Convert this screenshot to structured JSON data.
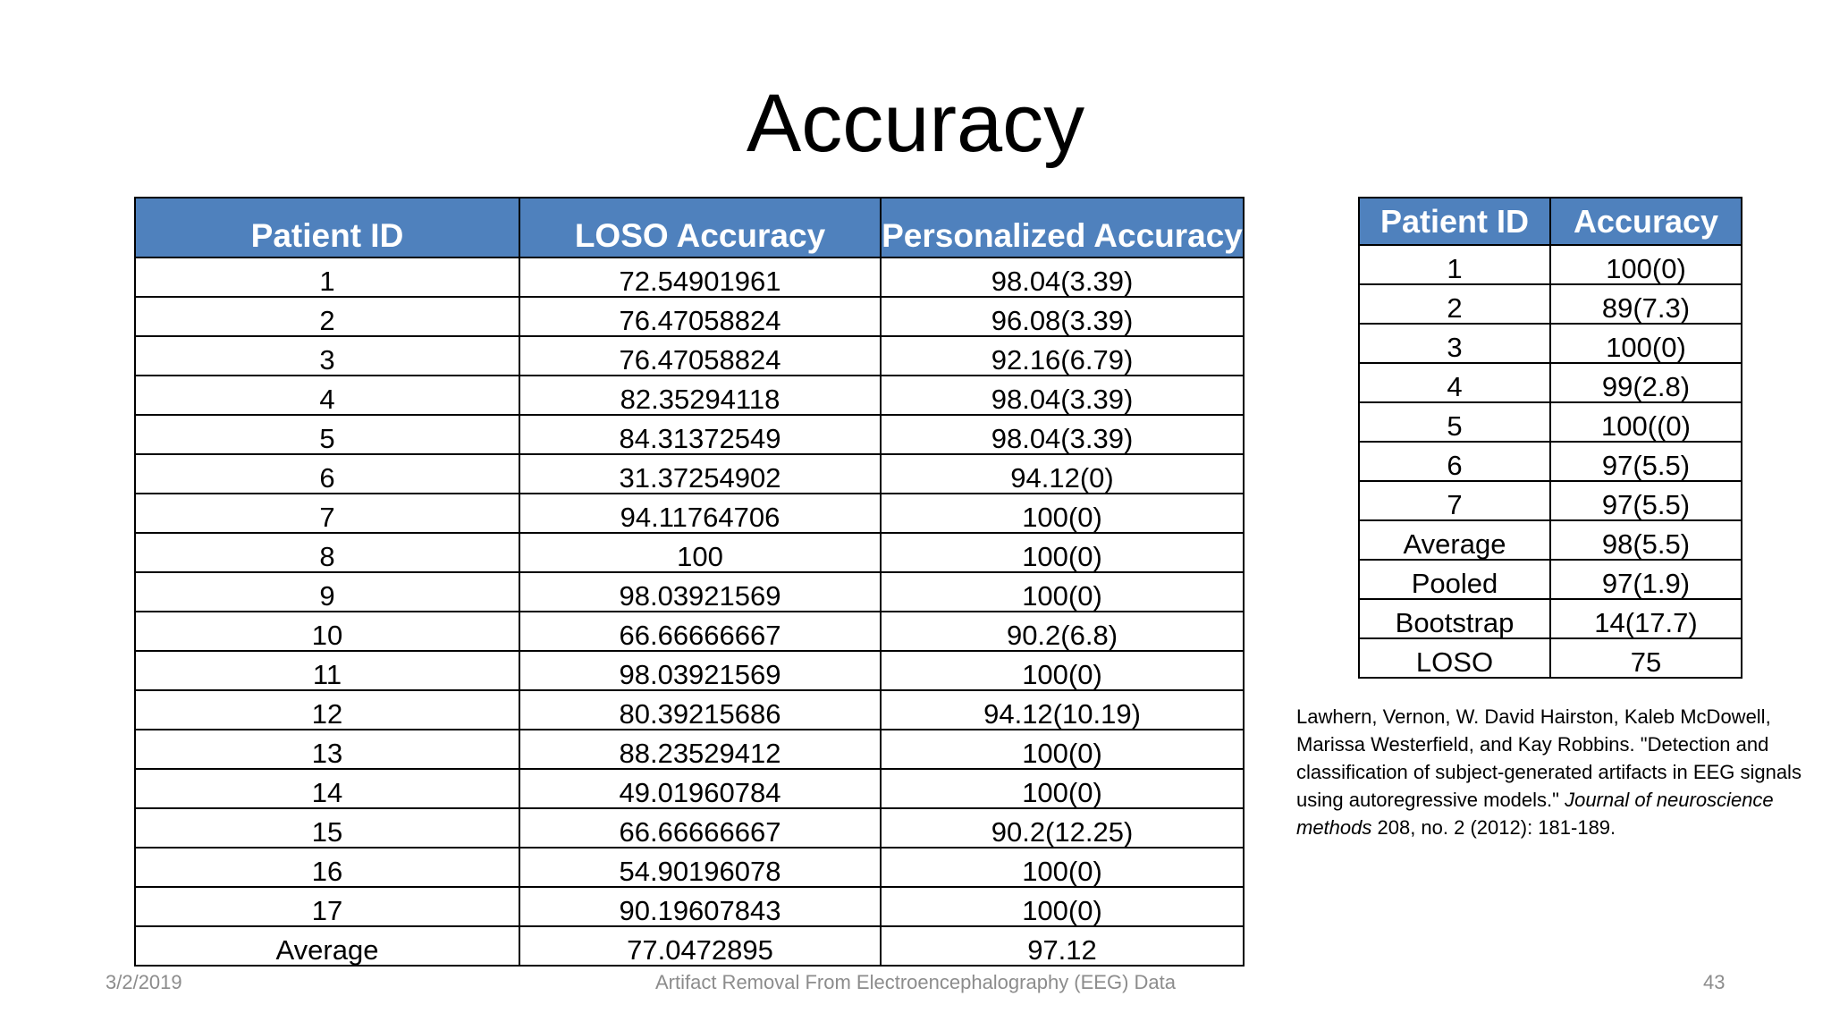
{
  "title": "Accuracy",
  "main_table": {
    "headers": [
      "Patient ID",
      "LOSO Accuracy",
      "Personalized Accuracy"
    ],
    "rows": [
      [
        "1",
        "72.54901961",
        "98.04(3.39)"
      ],
      [
        "2",
        "76.47058824",
        "96.08(3.39)"
      ],
      [
        "3",
        "76.47058824",
        "92.16(6.79)"
      ],
      [
        "4",
        "82.35294118",
        "98.04(3.39)"
      ],
      [
        "5",
        "84.31372549",
        "98.04(3.39)"
      ],
      [
        "6",
        "31.37254902",
        "94.12(0)"
      ],
      [
        "7",
        "94.11764706",
        "100(0)"
      ],
      [
        "8",
        "100",
        "100(0)"
      ],
      [
        "9",
        "98.03921569",
        "100(0)"
      ],
      [
        "10",
        "66.66666667",
        "90.2(6.8)"
      ],
      [
        "11",
        "98.03921569",
        "100(0)"
      ],
      [
        "12",
        "80.39215686",
        "94.12(10.19)"
      ],
      [
        "13",
        "88.23529412",
        "100(0)"
      ],
      [
        "14",
        "49.01960784",
        "100(0)"
      ],
      [
        "15",
        "66.66666667",
        "90.2(12.25)"
      ],
      [
        "16",
        "54.90196078",
        "100(0)"
      ],
      [
        "17",
        "90.19607843",
        "100(0)"
      ],
      [
        "Average",
        "77.0472895",
        "97.12"
      ]
    ]
  },
  "side_table": {
    "headers": [
      "Patient ID",
      "Accuracy"
    ],
    "rows": [
      [
        "1",
        "100(0)"
      ],
      [
        "2",
        "89(7.3)"
      ],
      [
        "3",
        "100(0)"
      ],
      [
        "4",
        "99(2.8)"
      ],
      [
        "5",
        "100((0)"
      ],
      [
        "6",
        "97(5.5)"
      ],
      [
        "7",
        "97(5.5)"
      ],
      [
        "Average",
        "98(5.5)"
      ],
      [
        "Pooled",
        "97(1.9)"
      ],
      [
        "Bootstrap",
        "14(17.7)"
      ],
      [
        "LOSO",
        "75"
      ]
    ]
  },
  "citation": {
    "authors_title": "Lawhern, Vernon, W. David Hairston, Kaleb McDowell, Marissa Westerfield, and Kay Robbins. \"Detection and classification of subject-generated artifacts in EEG signals using autoregressive models.\" ",
    "journal": "Journal of neuroscience methods",
    "details": " 208, no. 2 (2012): 181-189."
  },
  "footer": {
    "date": "3/2/2019",
    "title": "Artifact Removal From Electroencephalography (EEG) Data",
    "page": "43"
  },
  "colors": {
    "header_fill": "#4f81bd",
    "header_text": "#ffffff",
    "footer_text": "#8c8c8c"
  }
}
